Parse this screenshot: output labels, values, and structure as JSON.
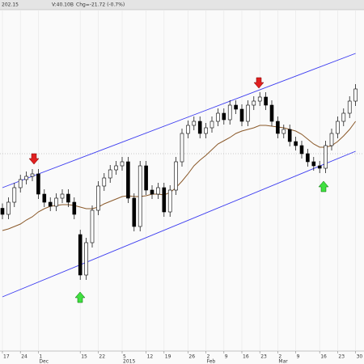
{
  "chart_data": {
    "type": "candlestick",
    "header": "202.15",
    "volume": "V:40.10B",
    "change": "Chg=-21.72 (-0.7%)",
    "categories": [
      "17",
      null,
      null,
      "24",
      null,
      null,
      "1",
      null,
      null,
      null,
      null,
      null,
      null,
      "15",
      null,
      null,
      "22",
      null,
      null,
      null,
      "5",
      null,
      null,
      null,
      "12",
      null,
      null,
      "19",
      null,
      null,
      null,
      "26",
      null,
      null,
      "2",
      null,
      null,
      "9",
      null,
      null,
      "16",
      null,
      null,
      "23",
      null,
      null,
      "2",
      null,
      null,
      "9",
      null,
      null,
      null,
      "16",
      null,
      null,
      "23",
      null,
      null,
      "30"
    ],
    "category_sublabels": [
      null,
      null,
      null,
      null,
      null,
      null,
      "Dec",
      null,
      null,
      null,
      null,
      null,
      null,
      null,
      null,
      null,
      null,
      null,
      null,
      null,
      "2015",
      null,
      null,
      null,
      null,
      null,
      null,
      null,
      null,
      null,
      null,
      null,
      null,
      null,
      "Feb",
      null,
      null,
      null,
      null,
      null,
      null,
      null,
      null,
      null,
      null,
      null,
      "Mar",
      null,
      null,
      null,
      null,
      null,
      null,
      null,
      null,
      null,
      null,
      null,
      null,
      null
    ],
    "open": [
      2935,
      2920,
      2950,
      2986,
      3006,
      3014,
      3020,
      2970,
      2950,
      2940,
      2960,
      2970,
      2950,
      2870,
      2770,
      2850,
      2930,
      2990,
      3010,
      3030,
      3040,
      3050,
      2960,
      2890,
      3040,
      2980,
      2970,
      2986,
      2926,
      2980,
      3050,
      3120,
      3140,
      3150,
      3120,
      3134,
      3150,
      3170,
      3154,
      3190,
      3180,
      3150,
      3190,
      3200,
      3210,
      3190,
      3150,
      3120,
      3130,
      3100,
      3090,
      3070,
      3050,
      3040,
      3034,
      3090,
      3120,
      3150,
      3170,
      3200
    ],
    "high": [
      2947,
      2962,
      2998,
      3018,
      3026,
      3032,
      3032,
      2982,
      2962,
      2972,
      2982,
      2982,
      2962,
      2882,
      2862,
      2942,
      3002,
      3022,
      3042,
      3052,
      3062,
      3062,
      2972,
      3052,
      3052,
      2992,
      2998,
      2998,
      2992,
      3062,
      3132,
      3152,
      3162,
      3162,
      3146,
      3162,
      3182,
      3182,
      3202,
      3202,
      3192,
      3202,
      3212,
      3222,
      3222,
      3202,
      3162,
      3142,
      3142,
      3112,
      3102,
      3082,
      3062,
      3052,
      3102,
      3132,
      3162,
      3182,
      3212,
      3242
    ],
    "low": [
      2908,
      2908,
      2938,
      2974,
      2994,
      3002,
      2958,
      2938,
      2928,
      2928,
      2948,
      2938,
      2908,
      2758,
      2758,
      2838,
      2918,
      2978,
      2998,
      3018,
      3028,
      2948,
      2878,
      2878,
      2968,
      2958,
      2958,
      2914,
      2914,
      2968,
      3038,
      3108,
      3128,
      3108,
      3108,
      3122,
      3138,
      3142,
      3142,
      3168,
      3138,
      3138,
      3178,
      3188,
      3178,
      3138,
      3108,
      3108,
      3088,
      3078,
      3058,
      3038,
      3028,
      3022,
      3022,
      3078,
      3108,
      3138,
      3158,
      3188
    ],
    "close": [
      2920,
      2950,
      2986,
      3006,
      3014,
      3020,
      2970,
      2950,
      2940,
      2960,
      2970,
      2950,
      2920,
      2770,
      2850,
      2930,
      2990,
      3010,
      3030,
      3040,
      3050,
      2960,
      2890,
      3040,
      2980,
      2970,
      2986,
      2926,
      2980,
      3050,
      3120,
      3140,
      3150,
      3120,
      3134,
      3150,
      3170,
      3154,
      3190,
      3180,
      3150,
      3190,
      3200,
      3210,
      3190,
      3150,
      3120,
      3130,
      3100,
      3090,
      3070,
      3050,
      3040,
      3034,
      3090,
      3120,
      3150,
      3170,
      3200,
      3230
    ],
    "moving_average": {
      "color": "#8b5a2b",
      "values": [
        2880,
        2884,
        2890,
        2896,
        2906,
        2914,
        2926,
        2934,
        2940,
        2942,
        2944,
        2944,
        2942,
        2938,
        2934,
        2934,
        2938,
        2946,
        2952,
        2958,
        2964,
        2966,
        2964,
        2964,
        2966,
        2970,
        2970,
        2968,
        2974,
        2986,
        3002,
        3020,
        3040,
        3054,
        3066,
        3080,
        3094,
        3102,
        3110,
        3120,
        3126,
        3130,
        3134,
        3140,
        3140,
        3138,
        3136,
        3134,
        3130,
        3126,
        3118,
        3106,
        3094,
        3086,
        3086,
        3090,
        3100,
        3114,
        3130,
        3150
      ]
    },
    "channels": [
      {
        "color": "#3b3bf0",
        "x": [
          0,
          59
        ],
        "values": [
          2986,
          3318
        ]
      },
      {
        "color": "#3b3bf0",
        "x": [
          0,
          59
        ],
        "values": [
          2716,
          3076
        ]
      }
    ],
    "reference_level": 3070,
    "ylim": [
      2584,
      3422
    ],
    "grid": true
  }
}
